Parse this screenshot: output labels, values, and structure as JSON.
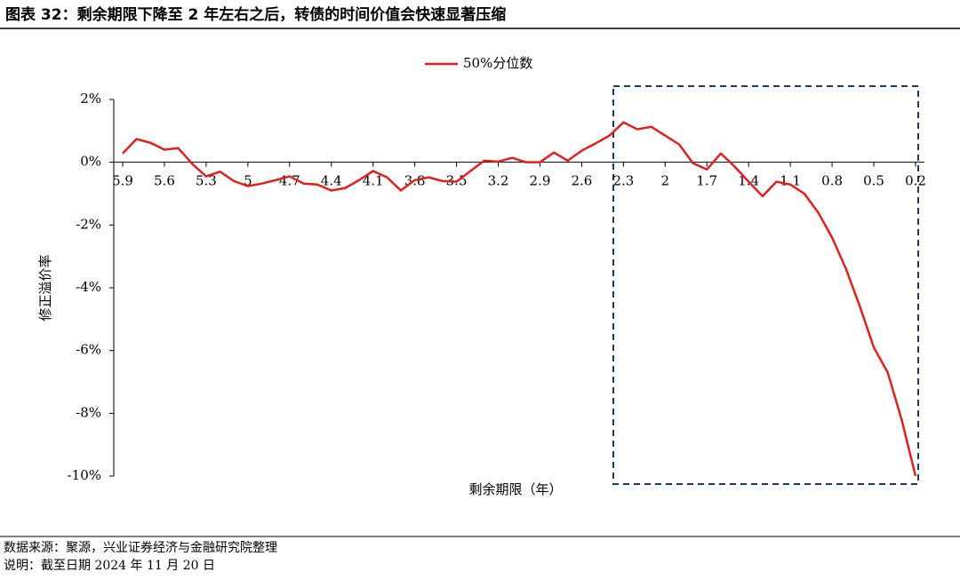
{
  "chart_data": {
    "type": "line",
    "title": "图表 32：剩余期限下降至 2 年左右之后，转债的时间价值会快速显著压缩",
    "xlabel": "剩余期限（年）",
    "ylabel": "修正溢价率",
    "x": [
      5.9,
      5.8,
      5.7,
      5.6,
      5.5,
      5.4,
      5.3,
      5.2,
      5.1,
      5,
      4.9,
      4.8,
      4.7,
      4.6,
      4.5,
      4.4,
      4.3,
      4.2,
      4.1,
      4,
      3.9,
      3.8,
      3.7,
      3.6,
      3.5,
      3.4,
      3.3,
      3.2,
      3.1,
      3,
      2.9,
      2.8,
      2.7,
      2.6,
      2.5,
      2.4,
      2.3,
      2.2,
      2.1,
      2,
      1.9,
      1.8,
      1.7,
      1.6,
      1.5,
      1.4,
      1.3,
      1.2,
      1.1,
      1,
      0.9,
      0.8,
      0.7,
      0.6,
      0.5,
      0.4,
      0.3,
      0.2
    ],
    "series": [
      {
        "name": "50%分位数",
        "color": "#e0201e",
        "values": [
          0.28,
          0.74,
          0.62,
          0.4,
          0.45,
          -0.05,
          -0.45,
          -0.3,
          -0.6,
          -0.76,
          -0.68,
          -0.57,
          -0.45,
          -0.68,
          -0.71,
          -0.9,
          -0.82,
          -0.57,
          -0.28,
          -0.48,
          -0.9,
          -0.57,
          -0.48,
          -0.6,
          -0.62,
          -0.28,
          0.05,
          0.02,
          0.14,
          0,
          0,
          0.31,
          0.05,
          0.37,
          0.6,
          0.85,
          1.27,
          1.05,
          1.13,
          0.85,
          0.57,
          -0.03,
          -0.23,
          0.28,
          -0.14,
          -0.62,
          -1.08,
          -0.62,
          -0.71,
          -1.0,
          -1.6,
          -2.4,
          -3.4,
          -4.6,
          -5.9,
          -6.7,
          -8.2,
          -10
        ]
      }
    ],
    "xlim": [
      5.9,
      0.2
    ],
    "xticks": [
      5.9,
      5.6,
      5.3,
      5,
      4.7,
      4.4,
      4.1,
      3.8,
      3.5,
      3.2,
      2.9,
      2.6,
      2.3,
      2,
      1.7,
      1.4,
      1.1,
      0.8,
      0.5,
      0.2
    ],
    "ylim": [
      -10,
      2
    ],
    "yticks": [
      {
        "value": 2,
        "label": "2%"
      },
      {
        "value": 0,
        "label": "0%"
      },
      {
        "value": -2,
        "label": "-2%"
      },
      {
        "value": -4,
        "label": "-4%"
      },
      {
        "value": -6,
        "label": "-6%"
      },
      {
        "value": -8,
        "label": "-8%"
      },
      {
        "value": -10,
        "label": "-10%"
      }
    ],
    "legend": "top",
    "source": "数据来源：聚源，兴业证券经济与金融研究院整理",
    "note": "说明：截至日期 2024 年 11 月 20 日"
  }
}
